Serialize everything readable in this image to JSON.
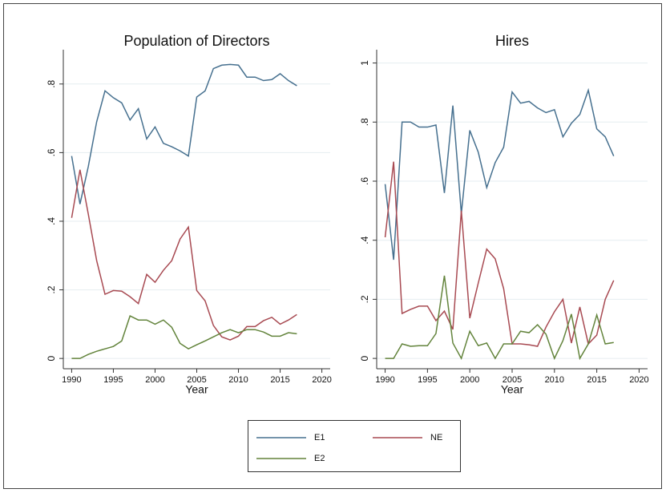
{
  "chart_data": [
    {
      "type": "line",
      "title": "Population of Directors",
      "x_label": "Year",
      "x": [
        1990,
        1991,
        1992,
        1993,
        1994,
        1995,
        1996,
        1997,
        1998,
        1999,
        2000,
        2001,
        2002,
        2003,
        2004,
        2005,
        2006,
        2007,
        2008,
        2009,
        2010,
        2011,
        2012,
        2013,
        2014,
        2015,
        2016,
        2017
      ],
      "series": [
        {
          "name": "E1",
          "color": "#46708f",
          "values": [
            0.59,
            0.45,
            0.56,
            0.69,
            0.78,
            0.76,
            0.745,
            0.695,
            0.728,
            0.64,
            0.675,
            0.627,
            0.617,
            0.605,
            0.59,
            0.762,
            0.78,
            0.845,
            0.855,
            0.857,
            0.855,
            0.82,
            0.82,
            0.81,
            0.813,
            0.83,
            0.81,
            0.795
          ]
        },
        {
          "name": "NE",
          "color": "#a84a52",
          "values": [
            0.41,
            0.55,
            0.42,
            0.285,
            0.187,
            0.198,
            0.196,
            0.18,
            0.16,
            0.245,
            0.222,
            0.257,
            0.285,
            0.348,
            0.383,
            0.198,
            0.168,
            0.096,
            0.063,
            0.054,
            0.065,
            0.093,
            0.093,
            0.11,
            0.12,
            0.1,
            0.112,
            0.128
          ]
        },
        {
          "name": "E2",
          "color": "#63843c",
          "values": [
            0,
            0,
            0.012,
            0.021,
            0.028,
            0.035,
            0.051,
            0.124,
            0.112,
            0.112,
            0.1,
            0.112,
            0.091,
            0.044,
            0.028,
            0.04,
            0.051,
            0.063,
            0.075,
            0.084,
            0.075,
            0.084,
            0.084,
            0.077,
            0.065,
            0.065,
            0.075,
            0.072
          ]
        }
      ],
      "xlim": [
        1989,
        2021
      ],
      "xticks": [
        1990,
        1995,
        2000,
        2005,
        2010,
        2015,
        2020
      ],
      "ylim": [
        -0.03,
        0.9
      ],
      "yticks": [
        0,
        {
          "value": 0.2,
          "label": ".2"
        },
        {
          "value": 0.4,
          "label": ".4"
        },
        {
          "value": 0.6,
          "label": ".6"
        },
        {
          "value": 0.8,
          "label": ".8"
        }
      ],
      "grid": true
    },
    {
      "type": "line",
      "title": "Hires",
      "x_label": "Year",
      "x": [
        1990,
        1991,
        1992,
        1993,
        1994,
        1995,
        1996,
        1997,
        1998,
        1999,
        2000,
        2001,
        2002,
        2003,
        2004,
        2005,
        2006,
        2007,
        2008,
        2009,
        2010,
        2011,
        2012,
        2013,
        2014,
        2015,
        2016,
        2017
      ],
      "series": [
        {
          "name": "E1",
          "color": "#46708f",
          "values": [
            0.59,
            0.334,
            0.8,
            0.8,
            0.783,
            0.783,
            0.79,
            0.56,
            0.856,
            0.49,
            0.772,
            0.698,
            0.578,
            0.663,
            0.715,
            0.902,
            0.864,
            0.87,
            0.848,
            0.832,
            0.842,
            0.75,
            0.796,
            0.826,
            0.908,
            0.777,
            0.75,
            0.685
          ]
        },
        {
          "name": "NE",
          "color": "#a84a52",
          "values": [
            0.41,
            0.666,
            0.152,
            0.166,
            0.177,
            0.177,
            0.128,
            0.16,
            0.098,
            0.5,
            0.136,
            0.255,
            0.37,
            0.337,
            0.236,
            0.049,
            0.049,
            0.046,
            0.041,
            0.106,
            0.158,
            0.2,
            0.052,
            0.174,
            0.049,
            0.079,
            0.2,
            0.264
          ]
        },
        {
          "name": "E2",
          "color": "#63843c",
          "values": [
            0,
            0,
            0.049,
            0.041,
            0.043,
            0.043,
            0.084,
            0.28,
            0.052,
            0,
            0.092,
            0.043,
            0.052,
            0,
            0.049,
            0.049,
            0.092,
            0.087,
            0.114,
            0.082,
            0,
            0.06,
            0.15,
            0,
            0.049,
            0.147,
            0.049,
            0.054
          ]
        }
      ],
      "xlim": [
        1989,
        2021
      ],
      "xticks": [
        1990,
        1995,
        2000,
        2005,
        2010,
        2015,
        2020
      ],
      "ylim": [
        -0.035,
        1.045
      ],
      "yticks": [
        0,
        {
          "value": 0.2,
          "label": ".2"
        },
        {
          "value": 0.4,
          "label": ".4"
        },
        {
          "value": 0.6,
          "label": ".6"
        },
        {
          "value": 0.8,
          "label": ".8"
        },
        {
          "value": 1,
          "label": "1"
        }
      ],
      "grid": true
    }
  ]
}
